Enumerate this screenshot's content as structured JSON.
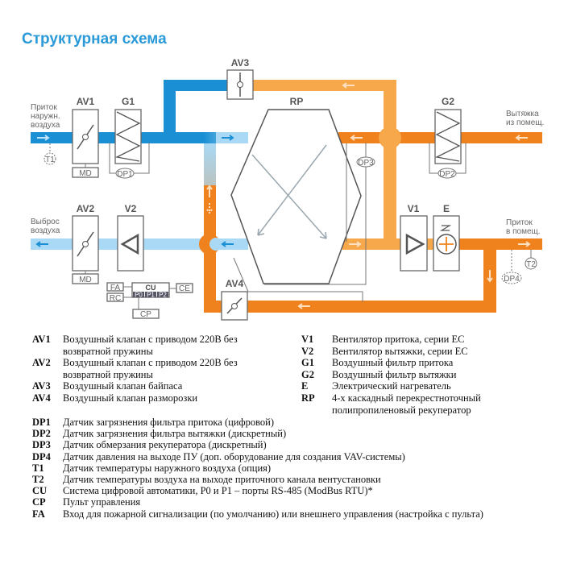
{
  "title": "Структурная схема",
  "colors": {
    "supply_outdoor": "#1a8fd3",
    "supply_light": "#a9d9f5",
    "exhaust": "#f0821e",
    "exhaust_light": "#f6a84a",
    "title": "#2b9ad8"
  },
  "diagram": {
    "components": {
      "AV1": "AV1",
      "AV2": "AV2",
      "AV3": "AV3",
      "AV4": "AV4",
      "G1": "G1",
      "G2": "G2",
      "V1": "V1",
      "V2": "V2",
      "E": "E",
      "RP": "RP",
      "MD1": "MD",
      "MD2": "MD",
      "DP1": "DP1",
      "DP2": "DP2",
      "DP3": "DP3",
      "DP4": "DP4",
      "T1": "T1",
      "T2": "T2",
      "FA": "FA",
      "RC": "RC",
      "CU": "CU",
      "CE": "CE",
      "CP": "CP",
      "P0": "P0",
      "P1": "P1",
      "P2": "P2"
    },
    "flows": {
      "outdoor_in": [
        "Приток",
        "наружн.",
        "воздуха"
      ],
      "exhaust_out": [
        "Выброс",
        "воздуха"
      ],
      "room_exhaust": [
        "Вытяжка",
        "из помещ."
      ],
      "room_supply": [
        "Приток",
        "в помещ."
      ]
    }
  },
  "legend": {
    "left": [
      {
        "code": "AV1",
        "text": "Воздушный клапан с приводом 220В без возвратной пружины"
      },
      {
        "code": "AV2",
        "text": "Воздушный клапан с приводом 220В без возвратной пружины"
      },
      {
        "code": "AV3",
        "text": "Воздушный клапан байпаса"
      },
      {
        "code": "AV4",
        "text": "Воздушный клапан разморозки"
      }
    ],
    "right": [
      {
        "code": "V1",
        "text": "Вентилятор притока, серии ЕС"
      },
      {
        "code": "V2",
        "text": "Вентилятор вытяжки, серии ЕС"
      },
      {
        "code": "G1",
        "text": "Воздушный фильтр притока"
      },
      {
        "code": "G2",
        "text": "Воздушный фильтр вытяжки"
      },
      {
        "code": "E",
        "text": "Электрический нагреватель"
      },
      {
        "code": "RP",
        "text": "4-х каскадный перекрестноточный полипропиленовый рекуператор"
      }
    ],
    "bottom": [
      {
        "code": "DP1",
        "text": "Датчик загрязнения фильтра притока (цифровой)"
      },
      {
        "code": "DP2",
        "text": "Датчик загрязнения фильтра вытяжки (дискретный)"
      },
      {
        "code": "DP3",
        "text": "Датчик обмерзания рекуператора (дискретный)"
      },
      {
        "code": "DP4",
        "text": "Датчик давления на выходе ПУ (доп. оборудование для создания VAV-системы)"
      },
      {
        "code": "T1",
        "text": "Датчик температуры наружного воздуха (опция)"
      },
      {
        "code": "T2",
        "text": "Датчик температуры воздуха на выходе приточного канала вентустановки"
      },
      {
        "code": "CU",
        "text": "Система цифровой автоматики, P0 и P1 – порты RS-485 (ModBus RTU)*"
      },
      {
        "code": "CP",
        "text": "Пульт управления"
      },
      {
        "code": "FA",
        "text": "Вход для пожарной сигнализации (по умолчанию) или внешнего управления (настройка с пульта)"
      }
    ]
  }
}
